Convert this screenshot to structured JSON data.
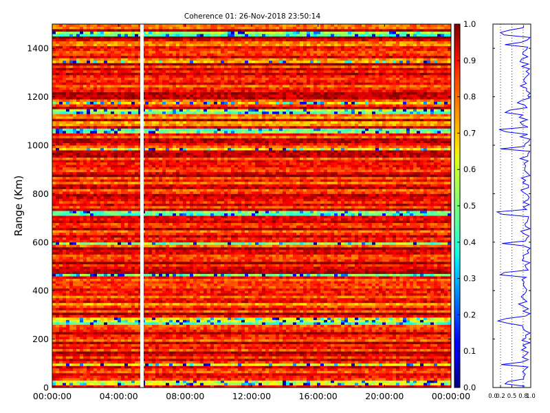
{
  "chart_data": [
    {
      "type": "heatmap",
      "title": "Coherence 01: 26-Nov-2018 23:50:14",
      "ylabel": "Range (Km)",
      "xlabel": "",
      "x_ticks": [
        "00:00:00",
        "04:00:00",
        "08:00:00",
        "12:00:00",
        "16:00:00",
        "20:00:00",
        "00:00:00"
      ],
      "y_ticks": [
        0,
        200,
        400,
        600,
        800,
        1000,
        1200,
        1400
      ],
      "ylim": [
        0,
        1500
      ],
      "xlim_hours": [
        0,
        24
      ],
      "data_gap_hour": 5.4,
      "colormap": "jet",
      "colorbar": {
        "min": 0.0,
        "max": 1.0,
        "ticks": [
          "0.0",
          "0.1",
          "0.2",
          "0.3",
          "0.4",
          "0.5",
          "0.6",
          "0.7",
          "0.8",
          "0.9",
          "1.0"
        ]
      },
      "low_coherence_ranges_km": [
        20,
        95,
        270,
        283,
        470,
        598,
        720,
        725,
        985,
        1060,
        1135,
        1140,
        1415,
        1460,
        1470
      ],
      "typical_coherence": 0.85
    },
    {
      "type": "line",
      "title": "",
      "orientation": "vertical-profile",
      "x_ticks": [
        "0.0",
        "0.2",
        "0.5",
        "0.8",
        "1.0"
      ],
      "xlim": [
        0,
        1
      ],
      "ylim": [
        0,
        1500
      ],
      "line_color": "#0000ff",
      "grid_lines_x": [
        0.2,
        0.5,
        0.8
      ]
    }
  ]
}
